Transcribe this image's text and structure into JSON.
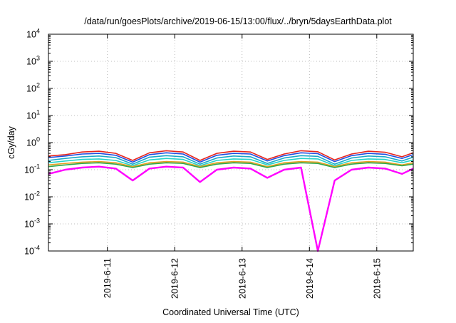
{
  "chart_data": {
    "type": "line",
    "title": "/data/run/goesPlots/archive/2019-06-15/13:00/flux/../bryn/5daysEarthData.plot",
    "xlabel": "Coordinated Universal Time (UTC)",
    "ylabel": "cGy/day",
    "yscale": "log",
    "ylim": [
      0.0001,
      10000
    ],
    "y_ticks": [
      {
        "value": 0.0001,
        "base": "10",
        "exp": "-4"
      },
      {
        "value": 0.001,
        "base": "10",
        "exp": "-3"
      },
      {
        "value": 0.01,
        "base": "10",
        "exp": "-2"
      },
      {
        "value": 0.1,
        "base": "10",
        "exp": "-1"
      },
      {
        "value": 1,
        "base": "10",
        "exp": "0"
      },
      {
        "value": 10,
        "base": "10",
        "exp": "1"
      },
      {
        "value": 100,
        "base": "10",
        "exp": "2"
      },
      {
        "value": 1000,
        "base": "10",
        "exp": "3"
      },
      {
        "value": 10000,
        "base": "10",
        "exp": "4"
      }
    ],
    "xlim": [
      "2019-06-10T03:00",
      "2019-06-15T13:00"
    ],
    "x_ticks": [
      {
        "date": "2019-06-11T00:00",
        "label": "2019-6-11"
      },
      {
        "date": "2019-06-12T00:00",
        "label": "2019-6-12"
      },
      {
        "date": "2019-06-13T00:00",
        "label": "2019-6-13"
      },
      {
        "date": "2019-06-14T00:00",
        "label": "2019-6-14"
      },
      {
        "date": "2019-06-15T00:00",
        "label": "2019-6-15"
      }
    ],
    "grid": true,
    "legend": "none",
    "sample_x": [
      "2019-06-10T03:00",
      "2019-06-10T09:00",
      "2019-06-10T15:00",
      "2019-06-10T21:00",
      "2019-06-11T03:00",
      "2019-06-11T09:00",
      "2019-06-11T15:00",
      "2019-06-11T21:00",
      "2019-06-12T03:00",
      "2019-06-12T09:00",
      "2019-06-12T15:00",
      "2019-06-12T21:00",
      "2019-06-13T03:00",
      "2019-06-13T09:00",
      "2019-06-13T15:00",
      "2019-06-13T21:00",
      "2019-06-14T03:00",
      "2019-06-14T09:00",
      "2019-06-14T15:00",
      "2019-06-14T21:00",
      "2019-06-15T03:00",
      "2019-06-15T09:00",
      "2019-06-15T13:00"
    ],
    "series": [
      {
        "color": "#e8241c",
        "values": [
          0.32,
          0.36,
          0.45,
          0.48,
          0.4,
          0.22,
          0.42,
          0.5,
          0.45,
          0.22,
          0.4,
          0.48,
          0.45,
          0.24,
          0.38,
          0.5,
          0.46,
          0.23,
          0.38,
          0.48,
          0.44,
          0.3,
          0.42
        ]
      },
      {
        "color": "#1f4fe0",
        "values": [
          0.28,
          0.32,
          0.38,
          0.4,
          0.34,
          0.19,
          0.36,
          0.42,
          0.38,
          0.19,
          0.34,
          0.4,
          0.38,
          0.21,
          0.33,
          0.42,
          0.39,
          0.2,
          0.33,
          0.4,
          0.37,
          0.26,
          0.36
        ]
      },
      {
        "color": "#19a8c8",
        "values": [
          0.22,
          0.26,
          0.3,
          0.32,
          0.28,
          0.16,
          0.29,
          0.33,
          0.3,
          0.16,
          0.27,
          0.32,
          0.3,
          0.17,
          0.27,
          0.33,
          0.31,
          0.16,
          0.27,
          0.32,
          0.3,
          0.21,
          0.29
        ]
      },
      {
        "color": "#27d3c8",
        "values": [
          0.18,
          0.21,
          0.24,
          0.25,
          0.22,
          0.14,
          0.23,
          0.26,
          0.24,
          0.14,
          0.22,
          0.25,
          0.24,
          0.15,
          0.22,
          0.26,
          0.25,
          0.14,
          0.22,
          0.25,
          0.24,
          0.18,
          0.23
        ]
      },
      {
        "color": "#e8a020",
        "values": [
          0.15,
          0.17,
          0.19,
          0.2,
          0.18,
          0.13,
          0.18,
          0.2,
          0.19,
          0.13,
          0.18,
          0.2,
          0.19,
          0.13,
          0.18,
          0.2,
          0.19,
          0.13,
          0.18,
          0.2,
          0.19,
          0.15,
          0.18
        ]
      },
      {
        "color": "#2fa84a",
        "values": [
          0.13,
          0.15,
          0.17,
          0.18,
          0.16,
          0.12,
          0.16,
          0.18,
          0.17,
          0.12,
          0.16,
          0.18,
          0.17,
          0.12,
          0.16,
          0.18,
          0.17,
          0.12,
          0.16,
          0.18,
          0.17,
          0.14,
          0.16
        ]
      },
      {
        "color": "#ff00ff",
        "values": [
          0.07,
          0.1,
          0.12,
          0.13,
          0.11,
          0.04,
          0.11,
          0.13,
          0.12,
          0.035,
          0.1,
          0.12,
          0.11,
          0.05,
          0.1,
          0.12,
          0.0001,
          0.04,
          0.1,
          0.12,
          0.11,
          0.07,
          0.11
        ]
      }
    ]
  }
}
